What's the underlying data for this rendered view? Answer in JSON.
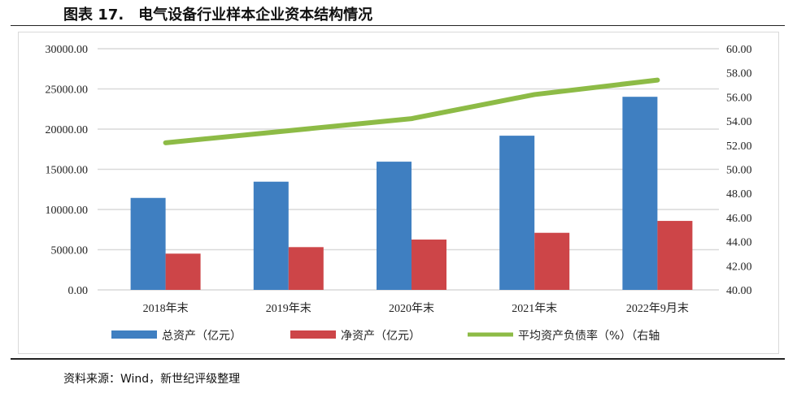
{
  "header": {
    "title": "图表 17.　电气设备行业样本企业资本结构情况"
  },
  "footer": {
    "source": "资料来源：Wind，新世纪评级整理"
  },
  "chart_data": {
    "type": "bar",
    "categories": [
      "2018年末",
      "2019年末",
      "2020年末",
      "2021年末",
      "2022年9月末"
    ],
    "series": [
      {
        "name": "总资产（亿元）",
        "type": "bar",
        "axis": "left",
        "color": "#3f7fc1",
        "values": [
          11440,
          13460,
          15950,
          19180,
          24020
        ]
      },
      {
        "name": "净资产（亿元）",
        "type": "bar",
        "axis": "left",
        "color": "#cd4548",
        "values": [
          4510,
          5320,
          6260,
          7100,
          8580
        ]
      },
      {
        "name": "平均资产负债率（%）（右轴",
        "type": "line",
        "axis": "right",
        "color": "#8dbb46",
        "values": [
          52.2,
          53.2,
          54.2,
          56.2,
          57.4
        ]
      }
    ],
    "ylim": [
      0,
      30000
    ],
    "yticks": [
      "0.00",
      "5000.00",
      "10000.00",
      "15000.00",
      "20000.00",
      "25000.00",
      "30000.00"
    ],
    "y2lim": [
      40,
      60
    ],
    "y2ticks": [
      "40.00",
      "42.00",
      "44.00",
      "46.00",
      "48.00",
      "50.00",
      "52.00",
      "54.00",
      "56.00",
      "58.00",
      "60.00"
    ],
    "grid": true,
    "legend": "bottom"
  }
}
